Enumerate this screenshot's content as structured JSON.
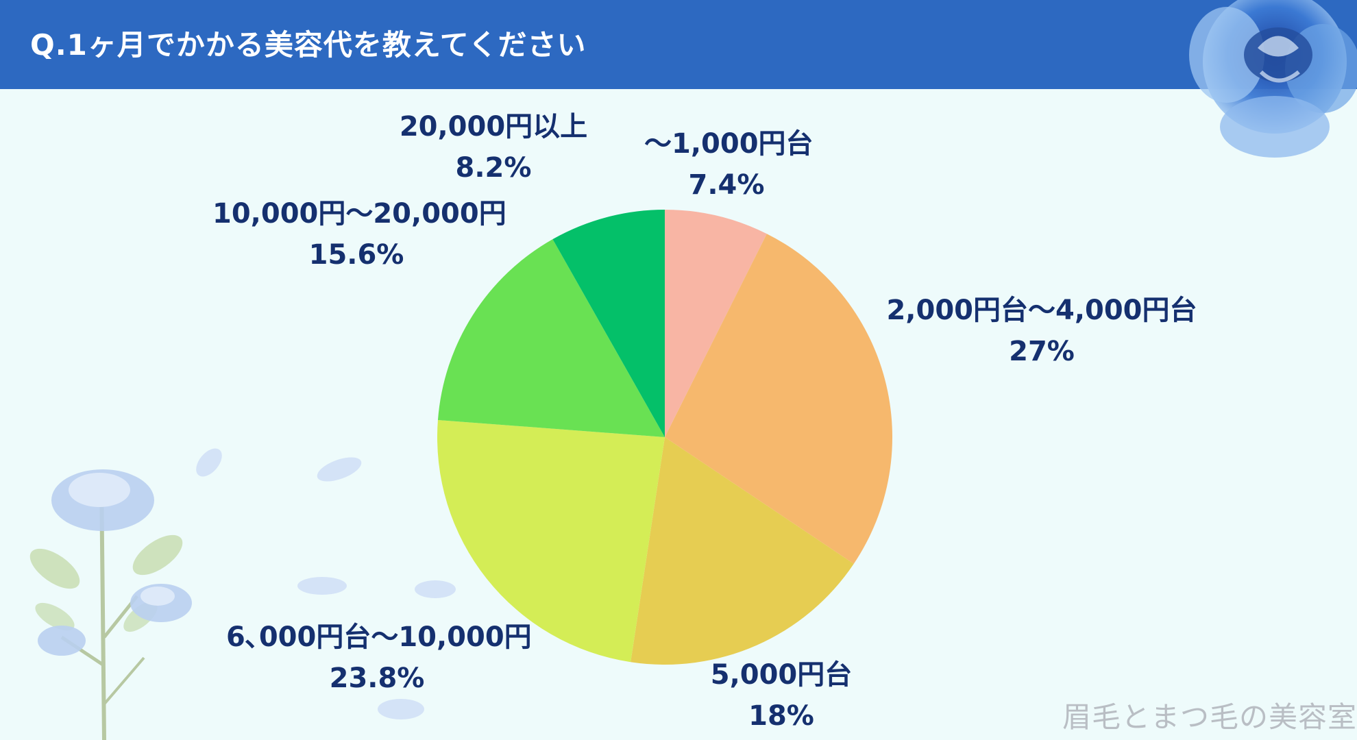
{
  "header": {
    "title": "Q.1ヶ月でかかる美容代を教えてください"
  },
  "colors": {
    "header": "#2d69c1",
    "background": "#eefbfb",
    "label": "#15306f"
  },
  "chart_data": {
    "type": "pie",
    "title": "",
    "start_angle": "12 o'clock",
    "direction": "clockwise",
    "slices": [
      {
        "label": "～1,000円台",
        "value": 7.4,
        "value_label": "7.4%",
        "color": "#f8b5a4"
      },
      {
        "label": "2,000円台～4,000円台",
        "value": 27,
        "value_label": "27%",
        "color": "#f6b86d"
      },
      {
        "label": "5,000円台",
        "value": 18,
        "value_label": "18%",
        "color": "#e6cd52"
      },
      {
        "label": "6､000円台～10,000円",
        "value": 23.8,
        "value_label": "23.8%",
        "color": "#d4ed56"
      },
      {
        "label": "10,000円～20,000円",
        "value": 15.6,
        "value_label": "15.6%",
        "color": "#69e153"
      },
      {
        "label": "20,000円以上",
        "value": 8.2,
        "value_label": "8.2%",
        "color": "#04c069"
      }
    ]
  },
  "watermark": "眉毛とまつ毛の美容室",
  "icons": [
    "blue-rose-icon",
    "blue-rose-branch-icon",
    "petal-icon"
  ]
}
